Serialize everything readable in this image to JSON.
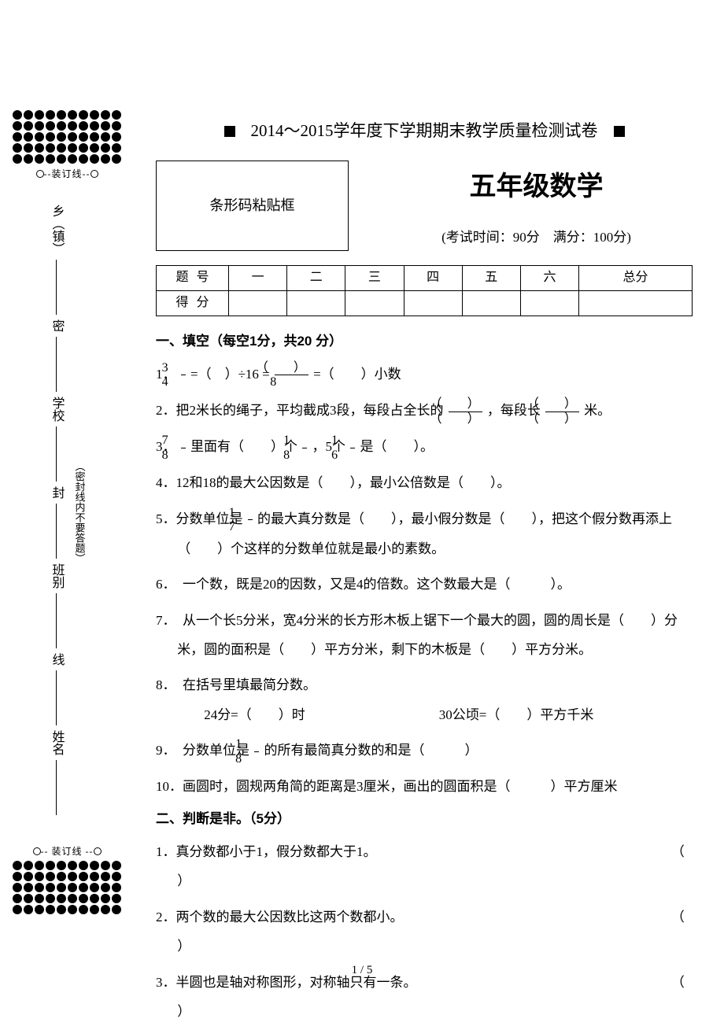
{
  "header": {
    "title": "2014～2015学年度下学期期末教学质量检测试卷",
    "barcode_label": "条形码粘贴框",
    "subject": "五年级数学",
    "exam_info": "(考试时间：90分　满分：100分)"
  },
  "score_table": {
    "header_labels": [
      "题号",
      "一",
      "二",
      "三",
      "四",
      "五",
      "六",
      "总分"
    ],
    "row_label": "得分"
  },
  "sidebar": {
    "binding_top": "--装订线--",
    "binding_bottom": "-- 装订线 --",
    "note": "（密封线内不要答题）",
    "fields": [
      "姓名",
      "班别",
      "学校",
      "乡（镇）"
    ],
    "mid_markers": [
      "线",
      "封",
      "密"
    ]
  },
  "section1": {
    "title": "一、填空（每空1分，共20 分）",
    "q1_a": "1．",
    "q1_frac1_num": "3",
    "q1_frac1_den": "4",
    "q1_mid1": " =（　）÷16 = ",
    "q1_frac2_num": "（　　）",
    "q1_frac2_den": "8",
    "q1_mid2": " =（　　）小数",
    "q2_a": "2．把2米长的绳子，平均截成3段，每段占全长的",
    "q2_frac1_num": "（　　）",
    "q2_frac1_den": "（　　）",
    "q2_b": "，每段长",
    "q2_frac2_num": "（　　）",
    "q2_frac2_den": "（　　）",
    "q2_c": "米。",
    "q3_a": "3．",
    "q3_f1n": "7",
    "q3_f1d": "8",
    "q3_b": " 里面有（　　）个",
    "q3_f2n": "1",
    "q3_f2d": "8",
    "q3_c": "，5个",
    "q3_f3n": "1",
    "q3_f3d": "6",
    "q3_d": "是（　　）。",
    "q4": "4．12和18的最大公因数是（　　），最小公倍数是（　　）。",
    "q5_a": "5．分数单位是 ",
    "q5_fn": "1",
    "q5_fd": "7",
    "q5_b": "的最大真分数是（　　），最小假分数是（　　），把这个假分数再添上（　　）个这样的分数单位就是最小的素数。",
    "q6": "6．　一个数，既是20的因数，又是4的倍数。这个数最大是（　　　）。",
    "q7": "7．　从一个长5分米，宽4分米的长方形木板上锯下一个最大的圆，圆的周长是（　　）分米，圆的面积是（　　）平方分米，剩下的木板是（　　）平方分米。",
    "q8_a": "8．　在括号里填最简分数。",
    "q8_b1": "24分=（　　）时",
    "q8_b2": "30公顷=（　　）平方千米",
    "q9_a": "9．　分数单位是",
    "q9_fn": "1",
    "q9_fd": "8",
    "q9_b": "  的所有最简真分数的和是（　　　）",
    "q10": "10．画圆时，圆规两角简的距离是3厘米，画出的圆面积是（　　　）平方厘米"
  },
  "section2": {
    "title": "二、判断是非。（5分）",
    "q1": "1．真分数都小于1，假分数都大于1。",
    "q2": "2．两个数的最大公因数比这两个数都小。",
    "q3": "3．半圆也是轴对称图形，对称轴只有一条。",
    "paren_open": "（",
    "paren_close": "）"
  },
  "pagenum": "1 / 5",
  "style": {
    "dot_rows": 5,
    "dot_cols": 10,
    "dot_color": "#000000",
    "page_bg": "#ffffff"
  }
}
